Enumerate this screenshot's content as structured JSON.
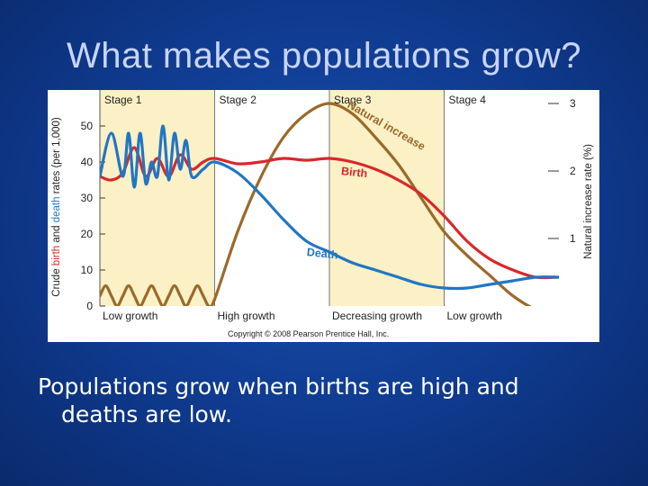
{
  "slide": {
    "title": "What makes populations grow?",
    "body_line1": "Populations grow when births are high and",
    "body_line2": "deaths are low."
  },
  "chart_data": {
    "type": "line",
    "x_unit": "demographic transition stage",
    "xlim": [
      0,
      4
    ],
    "stages": [
      {
        "label": "Stage 1",
        "start": 0,
        "end": 1,
        "shaded": true,
        "phase": "Low growth"
      },
      {
        "label": "Stage 2",
        "start": 1,
        "end": 2,
        "shaded": false,
        "phase": "High growth"
      },
      {
        "label": "Stage 3",
        "start": 2,
        "end": 3,
        "shaded": true,
        "phase": "Decreasing growth"
      },
      {
        "label": "Stage 4",
        "start": 3,
        "end": 4,
        "shaded": false,
        "phase": "Low growth"
      }
    ],
    "y_left": {
      "label_parts": [
        "Crude ",
        "birth",
        " and ",
        "death",
        " rates (per 1,000)"
      ],
      "ticks": [
        0,
        10,
        20,
        30,
        40,
        50
      ],
      "ylim": [
        0,
        60
      ]
    },
    "y_right": {
      "label": "Natural increase rate (%)",
      "ticks": [
        1,
        2,
        3
      ],
      "ylim": [
        0,
        3.2
      ]
    },
    "series": [
      {
        "name": "Birth",
        "axis": "left",
        "color": "#d8282c",
        "x": [
          0,
          0.1,
          0.2,
          0.3,
          0.4,
          0.5,
          0.6,
          0.7,
          0.8,
          0.9,
          1.0,
          1.2,
          1.4,
          1.6,
          1.8,
          2.0,
          2.2,
          2.4,
          2.6,
          2.8,
          3.0,
          3.2,
          3.4,
          3.6,
          3.8,
          4.0
        ],
        "values": [
          36,
          35,
          37,
          44,
          36,
          41,
          36,
          42,
          38,
          40,
          41,
          39.5,
          40,
          41,
          40.5,
          41,
          40,
          38,
          35,
          31,
          25,
          18,
          13,
          10,
          8,
          8
        ]
      },
      {
        "name": "Death",
        "axis": "left",
        "color": "#2176c4",
        "x": [
          0,
          0.1,
          0.2,
          0.25,
          0.3,
          0.35,
          0.4,
          0.45,
          0.5,
          0.55,
          0.6,
          0.65,
          0.7,
          0.75,
          0.8,
          0.9,
          1.0,
          1.2,
          1.4,
          1.6,
          1.8,
          2.0,
          2.2,
          2.4,
          2.6,
          2.8,
          3.0,
          3.2,
          3.4,
          3.6,
          3.8,
          4.0
        ],
        "values": [
          36,
          48,
          36,
          48,
          33,
          48,
          34,
          40,
          36,
          50,
          35,
          48,
          38,
          46,
          36,
          38,
          40,
          37,
          31,
          24,
          18,
          15,
          12,
          10,
          8,
          6,
          5,
          5,
          6,
          7,
          8,
          8
        ]
      },
      {
        "name": "Natural increase",
        "axis": "right",
        "color": "#9a6a2a",
        "x": [
          0,
          0.05,
          0.1,
          0.15,
          0.2,
          0.25,
          0.3,
          0.35,
          0.4,
          0.45,
          0.5,
          0.55,
          0.6,
          0.65,
          0.7,
          0.75,
          0.8,
          0.85,
          0.9,
          0.95,
          1.0,
          1.2,
          1.4,
          1.6,
          1.8,
          2.0,
          2.2,
          2.4,
          2.6,
          2.8,
          3.0,
          3.2,
          3.4,
          3.6,
          3.8,
          4.0
        ],
        "values": [
          0.15,
          0.3,
          0.15,
          0,
          0.15,
          0.3,
          0.15,
          0,
          0.15,
          0.3,
          0.15,
          0,
          0.15,
          0.3,
          0.15,
          0,
          0.15,
          0.3,
          0.15,
          0,
          0.1,
          1.1,
          1.9,
          2.5,
          2.85,
          3.0,
          2.85,
          2.5,
          2.1,
          1.6,
          1.1,
          0.75,
          0.45,
          0.15,
          -0.05,
          -0.1
        ]
      }
    ],
    "annotations": [
      {
        "text": "Natural increase",
        "series": "Natural increase"
      },
      {
        "text": "Birth",
        "series": "Birth"
      },
      {
        "text": "Death",
        "series": "Death"
      }
    ],
    "grid": false,
    "copyright": "Copyright © 2008 Pearson Prentice Hall, Inc."
  }
}
